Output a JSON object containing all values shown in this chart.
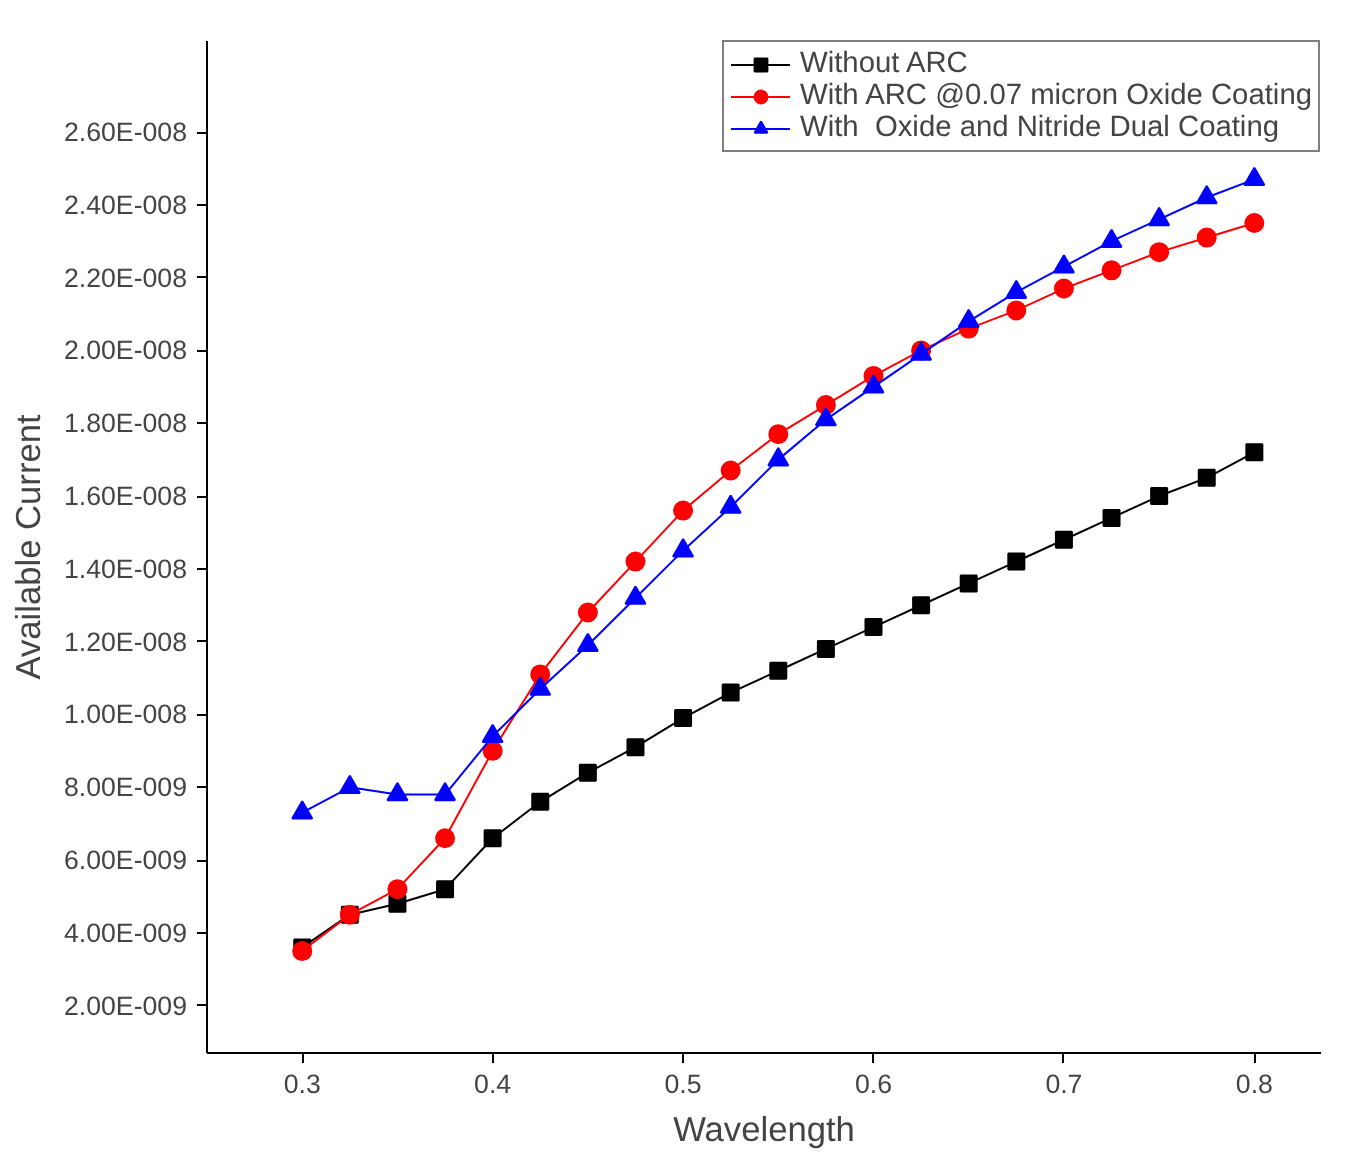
{
  "chart_data": {
    "type": "line",
    "xlabel": "Wavelength",
    "ylabel": "Available Current",
    "x": [
      0.3,
      0.325,
      0.35,
      0.375,
      0.4,
      0.425,
      0.45,
      0.475,
      0.5,
      0.525,
      0.55,
      0.575,
      0.6,
      0.625,
      0.65,
      0.675,
      0.7,
      0.725,
      0.75,
      0.775,
      0.8
    ],
    "series": [
      {
        "name": "Without ARC",
        "color": "#000000",
        "marker": "square",
        "values": [
          3.6e-09,
          4.5e-09,
          4.8e-09,
          5.2e-09,
          6.6e-09,
          7.6e-09,
          8.4e-09,
          9.1e-09,
          9.9e-09,
          1.06e-08,
          1.12e-08,
          1.18e-08,
          1.24e-08,
          1.3e-08,
          1.36e-08,
          1.42e-08,
          1.48e-08,
          1.54e-08,
          1.6e-08,
          1.65e-08,
          1.72e-08
        ]
      },
      {
        "name": "With ARC @0.07 micron Oxide Coating",
        "color": "#ff0000",
        "marker": "circle",
        "values": [
          3.5e-09,
          4.5e-09,
          5.2e-09,
          6.6e-09,
          9e-09,
          1.11e-08,
          1.28e-08,
          1.42e-08,
          1.56e-08,
          1.67e-08,
          1.77e-08,
          1.85e-08,
          1.93e-08,
          2e-08,
          2.06e-08,
          2.11e-08,
          2.17e-08,
          2.22e-08,
          2.27e-08,
          2.31e-08,
          2.35e-08
        ]
      },
      {
        "name": "With  Oxide and Nitride Dual Coating",
        "color": "#0000ff",
        "marker": "triangle",
        "values": [
          7.3e-09,
          8e-09,
          7.8e-09,
          7.8e-09,
          9.4e-09,
          1.07e-08,
          1.19e-08,
          1.32e-08,
          1.45e-08,
          1.57e-08,
          1.7e-08,
          1.81e-08,
          1.9e-08,
          1.99e-08,
          2.08e-08,
          2.16e-08,
          2.23e-08,
          2.3e-08,
          2.36e-08,
          2.42e-08,
          2.47e-08
        ]
      }
    ],
    "xlim": [
      0.25,
      0.835
    ],
    "xticks": [
      0.3,
      0.4,
      0.5,
      0.6,
      0.7,
      0.8
    ],
    "ylim": [
      7e-10,
      2.85e-08
    ],
    "yticks": [
      {
        "value": 2e-09,
        "label": "2.00E-009"
      },
      {
        "value": 4e-09,
        "label": "4.00E-009"
      },
      {
        "value": 6e-09,
        "label": "6.00E-009"
      },
      {
        "value": 8e-09,
        "label": "8.00E-009"
      },
      {
        "value": 1e-08,
        "label": "1.00E-008"
      },
      {
        "value": 1.2e-08,
        "label": "1.20E-008"
      },
      {
        "value": 1.4e-08,
        "label": "1.40E-008"
      },
      {
        "value": 1.6e-08,
        "label": "1.60E-008"
      },
      {
        "value": 1.8e-08,
        "label": "1.80E-008"
      },
      {
        "value": 2e-08,
        "label": "2.00E-008"
      },
      {
        "value": 2.2e-08,
        "label": "2.20E-008"
      },
      {
        "value": 2.4e-08,
        "label": "2.40E-008"
      },
      {
        "value": 2.6e-08,
        "label": "2.60E-008"
      }
    ],
    "grid": false,
    "legend": "top",
    "line_style": "solid"
  }
}
